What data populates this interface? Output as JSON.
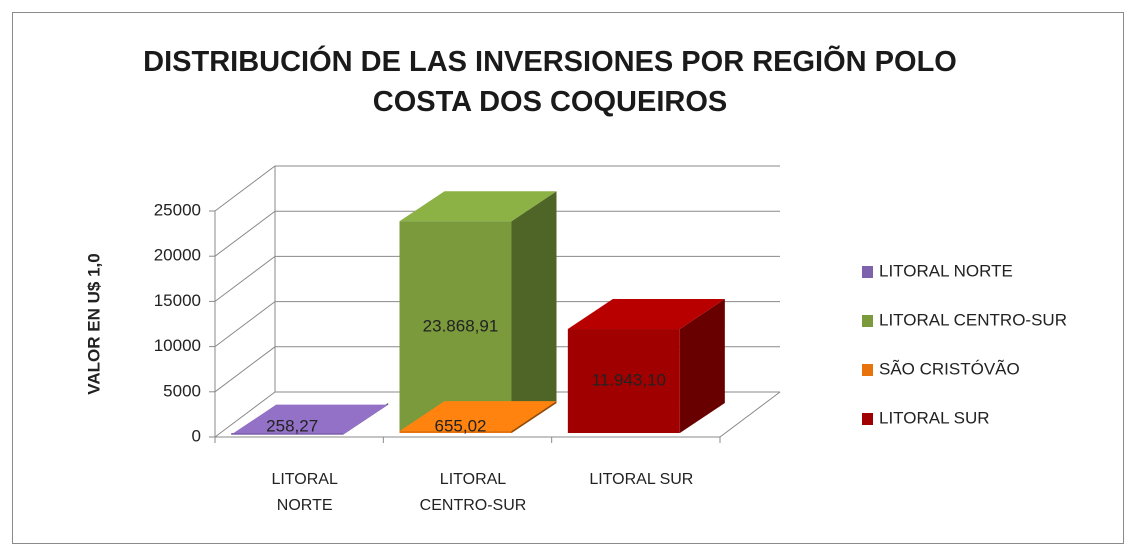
{
  "chart_data": {
    "type": "bar3d",
    "title": "DISTRIBUCIÓN DE LAS INVERSIONES POR REGIÕN POLO COSTA DOS COQUEIROS",
    "y_label": "VALOR  EN U$ 1,0",
    "categories": [
      "LITORAL NORTE",
      "LITORAL CENTRO-SUR",
      "LITORAL SUR"
    ],
    "series": [
      {
        "name": "LITORAL NORTE",
        "color": "#7f62ad",
        "values": [
          258.27,
          null,
          null
        ],
        "value_labels": [
          "258,27",
          null,
          null
        ]
      },
      {
        "name": "LITORAL CENTRO-SUR",
        "color": "#7a9a3c",
        "values": [
          null,
          23868.91,
          null
        ],
        "value_labels": [
          null,
          "23.868,91",
          null
        ]
      },
      {
        "name": "SÃO CRISTÓVÃO",
        "color": "#e8720c",
        "values": [
          null,
          655.02,
          null
        ],
        "value_labels": [
          null,
          "655,02",
          null
        ]
      },
      {
        "name": "LITORAL SUR",
        "color": "#a00000",
        "values": [
          null,
          null,
          11943.1
        ],
        "value_labels": [
          null,
          null,
          "11.943,10"
        ]
      }
    ],
    "ylim": [
      0,
      25000
    ],
    "yticks": [
      0,
      5000,
      10000,
      15000,
      20000,
      25000
    ],
    "grid": true,
    "legend": "right"
  }
}
